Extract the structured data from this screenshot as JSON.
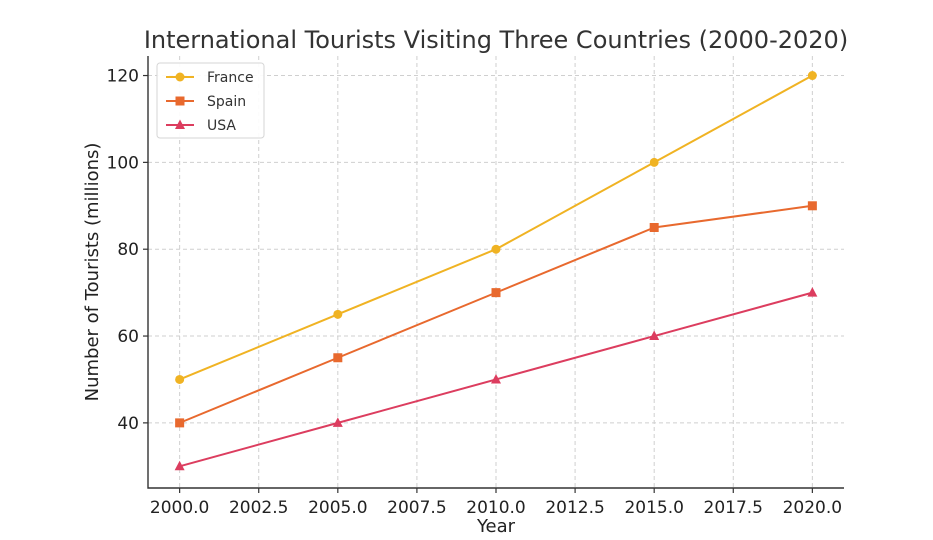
{
  "chart_data": {
    "type": "line",
    "title": "International Tourists Visiting Three Countries (2000-2020)",
    "xlabel": "Year",
    "ylabel": "Number of Tourists (millions)",
    "x": [
      2000,
      2005,
      2010,
      2015,
      2020
    ],
    "xlim": [
      1999.0,
      2021.0
    ],
    "ylim": [
      25.0,
      124.5
    ],
    "x_ticks": [
      2000.0,
      2002.5,
      2005.0,
      2007.5,
      2010.0,
      2012.5,
      2015.0,
      2017.5,
      2020.0
    ],
    "x_tick_labels": [
      "2000.0",
      "2002.5",
      "2005.0",
      "2007.5",
      "2010.0",
      "2012.5",
      "2015.0",
      "2017.5",
      "2020.0"
    ],
    "y_ticks": [
      40,
      60,
      80,
      100,
      120
    ],
    "y_tick_labels": [
      "40",
      "60",
      "80",
      "100",
      "120"
    ],
    "grid": true,
    "legend_position": "top-left",
    "series": [
      {
        "name": "France",
        "color": "#f0b323",
        "marker": "circle",
        "values": [
          50,
          65,
          80,
          100,
          120
        ]
      },
      {
        "name": "Spain",
        "color": "#e8692e",
        "marker": "square",
        "values": [
          40,
          55,
          70,
          85,
          90
        ]
      },
      {
        "name": "USA",
        "color": "#dc3d5f",
        "marker": "triangle",
        "values": [
          30,
          40,
          50,
          60,
          70
        ]
      }
    ]
  }
}
